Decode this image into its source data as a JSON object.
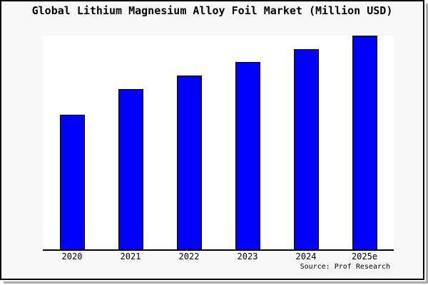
{
  "frame": {
    "fill_color": "#f8f8f8",
    "border_color": "#000000",
    "shadow_color": "#aaaaaa",
    "plot_background": "#ffffff"
  },
  "chart_data": {
    "type": "bar",
    "title": "Global Lithium Magnesium Alloy Foil Market (Million USD)",
    "categories": [
      "2020",
      "2021",
      "2022",
      "2023",
      "2024",
      "2025e"
    ],
    "values": [
      63.1,
      75.1,
      81.4,
      87.7,
      93.7,
      100
    ],
    "value_note": "no y-axis shown; values estimated relative to 2025e = 100",
    "xlabel": "",
    "ylabel": "",
    "ylim": [
      0,
      100
    ],
    "grid": false,
    "legend": false,
    "bar_color": "#0000ff",
    "bar_border_color": "#000000",
    "source": "Source: Prof Research"
  }
}
